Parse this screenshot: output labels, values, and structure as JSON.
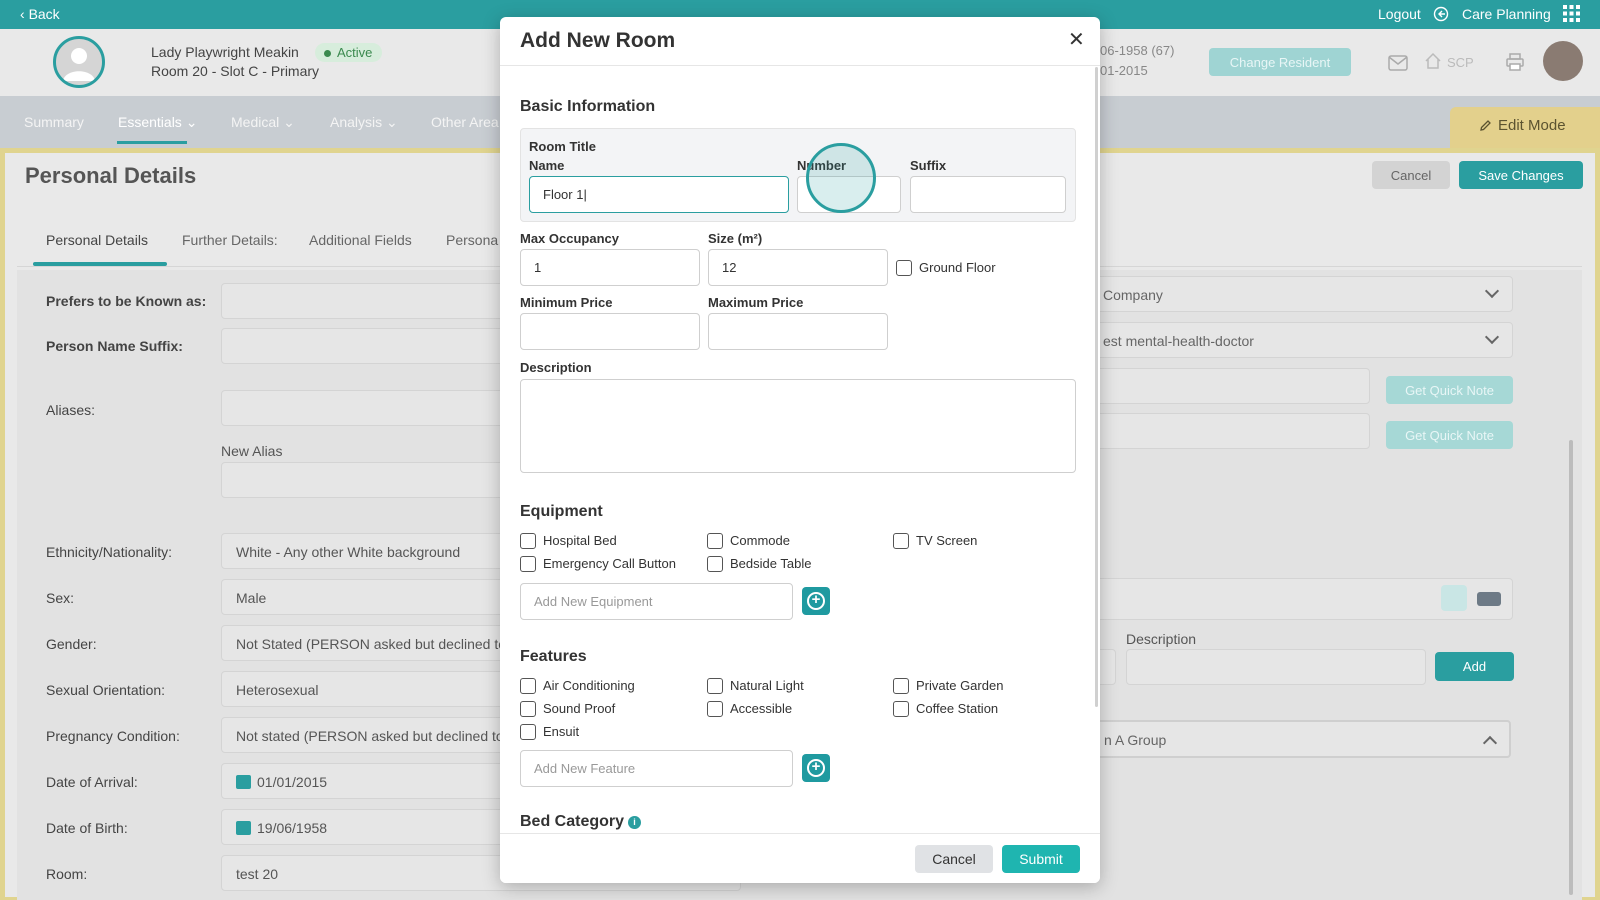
{
  "topbar": {
    "back": "Back",
    "logout": "Logout",
    "care_planning": "Care Planning"
  },
  "resident": {
    "name": "Lady Playwright Meakin",
    "status": "Active",
    "room": "Room 20 - Slot C - Primary",
    "dob_partial": "06-1958 (67)",
    "arrival_partial": "01-2015",
    "change_button": "Change Resident",
    "scp": "SCP"
  },
  "nav": {
    "items": [
      "Summary",
      "Essentials",
      "Medical",
      "Analysis",
      "Other Area"
    ],
    "active": "Essentials",
    "edit_mode": "Edit Mode"
  },
  "page": {
    "title": "Personal Details",
    "cancel": "Cancel",
    "save": "Save Changes",
    "tabs": [
      "Personal Details",
      "Further Details:",
      "Additional Fields",
      "Persona"
    ]
  },
  "form": {
    "known_as": "Prefers to be Known as:",
    "name_suffix": "Person Name Suffix:",
    "aliases": "Aliases:",
    "new_alias": "New Alias",
    "ethnicity_label": "Ethnicity/Nationality:",
    "ethnicity_value": "White - Any other White background",
    "sex_label": "Sex:",
    "sex_value": "Male",
    "gender_label": "Gender:",
    "gender_value": "Not Stated (PERSON asked but declined to",
    "orientation_label": "Sexual Orientation:",
    "orientation_value": "Heterosexual",
    "pregnancy_label": "Pregnancy Condition:",
    "pregnancy_value": "Not stated (PERSON asked but declined to",
    "arrival_label": "Date of Arrival:",
    "arrival_value": "01/01/2015",
    "dob_label": "Date of Birth:",
    "dob_value": "19/06/1958",
    "room_label": "Room:",
    "room_value": "test 20"
  },
  "right_panel": {
    "company": "Company",
    "doctor": "est mental-health-doctor",
    "quick_note_1": "Get Quick Note",
    "quick_note_2": "Get Quick Note",
    "description_label": "Description",
    "add": "Add",
    "group": "n A Group"
  },
  "modal": {
    "title": "Add New Room",
    "basic_info": "Basic Information",
    "room_title": "Room Title",
    "name_label": "Name",
    "name_value": "Floor 1",
    "number_label": "Number",
    "suffix_label": "Suffix",
    "max_occ_label": "Max Occupancy",
    "max_occ_value": "1",
    "size_label": "Size (m²)",
    "size_value": "12",
    "ground_floor": "Ground Floor",
    "min_price_label": "Minimum Price",
    "max_price_label": "Maximum Price",
    "description_label": "Description",
    "equipment_title": "Equipment",
    "equipment": [
      "Hospital Bed",
      "Commode",
      "TV Screen",
      "Emergency Call Button",
      "Bedside Table"
    ],
    "equipment_placeholder": "Add New Equipment",
    "features_title": "Features",
    "features": [
      "Air Conditioning",
      "Natural Light",
      "Private Garden",
      "Sound Proof",
      "Accessible",
      "Coffee Station",
      "Ensuit"
    ],
    "feature_placeholder": "Add New Feature",
    "bed_category": "Bed Category",
    "cancel": "Cancel",
    "submit": "Submit"
  },
  "colors": {
    "accent": "#2a9ea0",
    "edit_mode": "#e3d08c",
    "active_badge": "#d7eddc"
  }
}
